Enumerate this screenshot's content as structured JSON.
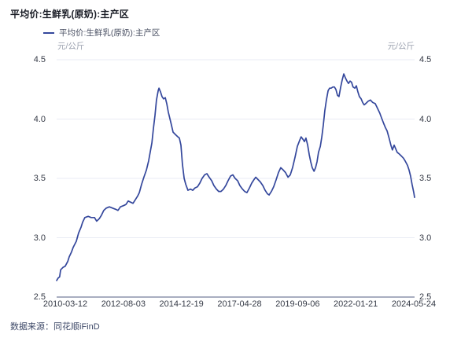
{
  "title": "平均价:生鲜乳(原奶):主产区",
  "legend": {
    "label": "平均价:生鲜乳(原奶):主产区"
  },
  "axes": {
    "unit": "元/公斤",
    "ytick_labels": [
      "4.5",
      "4.0",
      "3.5",
      "3.0",
      "2.5"
    ],
    "xtick_labels": [
      "2010-03-12",
      "2012-08-03",
      "2014-12-19",
      "2017-04-28",
      "2019-09-06",
      "2022-01-21",
      "2024-05-24"
    ]
  },
  "footer": {
    "source": "数据来源：同花顺iFinD"
  },
  "colors": {
    "line": "#34479c",
    "grid": "#e9ebf4",
    "axis_line": "#a9aec0",
    "tick_text": "#363b47",
    "unit_text": "#9aa0ae",
    "title_text": "#1a1d26",
    "legend_text": "#4a5063",
    "footer_text": "#3e4968"
  },
  "chart_data": {
    "type": "line",
    "title": "平均价:生鲜乳(原奶):主产区",
    "xlabel": "",
    "ylabel": "元/公斤",
    "ylim": [
      2.5,
      4.5
    ],
    "yticks": [
      4.5,
      4.0,
      3.5,
      3.0,
      2.5
    ],
    "xtick_labels": [
      "2010-03-12",
      "2012-08-03",
      "2014-12-19",
      "2017-04-28",
      "2019-09-06",
      "2022-01-21",
      "2024-05-24"
    ],
    "x_unit": "decimal_year",
    "xlim": [
      2010.2,
      2024.4
    ],
    "grid": "horizontal",
    "legend_position": "top-left",
    "series": [
      {
        "name": "平均价:生鲜乳(原奶):主产区",
        "x": [
          2010.2,
          2010.26,
          2010.32,
          2010.36,
          2010.45,
          2010.54,
          2010.64,
          2010.7,
          2010.79,
          2010.86,
          2010.98,
          2011.07,
          2011.17,
          2011.23,
          2011.32,
          2011.45,
          2011.57,
          2011.7,
          2011.79,
          2011.89,
          2011.98,
          2012.07,
          2012.17,
          2012.29,
          2012.42,
          2012.54,
          2012.63,
          2012.73,
          2012.85,
          2012.95,
          2013.04,
          2013.13,
          2013.23,
          2013.32,
          2013.41,
          2013.48,
          2013.57,
          2013.66,
          2013.76,
          2013.85,
          2013.91,
          2013.98,
          2014.04,
          2014.1,
          2014.16,
          2014.23,
          2014.26,
          2014.32,
          2014.38,
          2014.44,
          2014.51,
          2014.57,
          2014.63,
          2014.73,
          2014.82,
          2014.91,
          2015.01,
          2015.07,
          2015.13,
          2015.19,
          2015.26,
          2015.32,
          2015.41,
          2015.51,
          2015.6,
          2015.69,
          2015.79,
          2015.88,
          2015.97,
          2016.07,
          2016.16,
          2016.25,
          2016.35,
          2016.44,
          2016.54,
          2016.63,
          2016.72,
          2016.82,
          2016.91,
          2017.0,
          2017.1,
          2017.19,
          2017.28,
          2017.38,
          2017.47,
          2017.57,
          2017.66,
          2017.75,
          2017.85,
          2017.94,
          2018.03,
          2018.1,
          2018.19,
          2018.28,
          2018.38,
          2018.47,
          2018.56,
          2018.63,
          2018.72,
          2018.81,
          2018.91,
          2019.0,
          2019.09,
          2019.19,
          2019.28,
          2019.38,
          2019.47,
          2019.56,
          2019.66,
          2019.75,
          2019.84,
          2019.9,
          2019.97,
          2020.03,
          2020.09,
          2020.16,
          2020.22,
          2020.28,
          2020.34,
          2020.41,
          2020.47,
          2020.53,
          2020.59,
          2020.66,
          2020.72,
          2020.78,
          2020.84,
          2020.9,
          2020.97,
          2021.03,
          2021.09,
          2021.16,
          2021.22,
          2021.28,
          2021.34,
          2021.4,
          2021.47,
          2021.53,
          2021.59,
          2021.65,
          2021.72,
          2021.78,
          2021.84,
          2021.9,
          2021.96,
          2022.03,
          2022.09,
          2022.15,
          2022.21,
          2022.28,
          2022.34,
          2022.4,
          2022.46,
          2022.56,
          2022.65,
          2022.74,
          2022.84,
          2022.93,
          2023.02,
          2023.09,
          2023.18,
          2023.24,
          2023.31,
          2023.4,
          2023.46,
          2023.52,
          2023.59,
          2023.65,
          2023.71,
          2023.77,
          2023.87,
          2023.96,
          2024.02,
          2024.12,
          2024.18,
          2024.24,
          2024.3,
          2024.37,
          2024.4
        ],
        "values": [
          2.64,
          2.66,
          2.67,
          2.73,
          2.75,
          2.76,
          2.8,
          2.84,
          2.88,
          2.92,
          2.97,
          3.04,
          3.09,
          3.13,
          3.17,
          3.18,
          3.17,
          3.17,
          3.14,
          3.16,
          3.19,
          3.23,
          3.25,
          3.26,
          3.25,
          3.24,
          3.23,
          3.26,
          3.27,
          3.28,
          3.31,
          3.3,
          3.29,
          3.32,
          3.35,
          3.38,
          3.45,
          3.51,
          3.57,
          3.65,
          3.72,
          3.8,
          3.92,
          4.03,
          4.16,
          4.24,
          4.26,
          4.23,
          4.19,
          4.17,
          4.18,
          4.13,
          4.06,
          3.97,
          3.89,
          3.87,
          3.85,
          3.84,
          3.78,
          3.62,
          3.5,
          3.45,
          3.4,
          3.41,
          3.4,
          3.42,
          3.43,
          3.46,
          3.5,
          3.53,
          3.54,
          3.51,
          3.48,
          3.44,
          3.41,
          3.39,
          3.39,
          3.41,
          3.44,
          3.48,
          3.52,
          3.53,
          3.5,
          3.48,
          3.44,
          3.41,
          3.39,
          3.38,
          3.42,
          3.46,
          3.49,
          3.51,
          3.49,
          3.47,
          3.44,
          3.4,
          3.37,
          3.36,
          3.39,
          3.43,
          3.49,
          3.55,
          3.59,
          3.57,
          3.55,
          3.51,
          3.53,
          3.59,
          3.68,
          3.77,
          3.82,
          3.85,
          3.83,
          3.81,
          3.84,
          3.78,
          3.7,
          3.64,
          3.59,
          3.56,
          3.59,
          3.64,
          3.72,
          3.77,
          3.85,
          3.95,
          4.07,
          4.16,
          4.24,
          4.26,
          4.26,
          4.27,
          4.27,
          4.25,
          4.2,
          4.19,
          4.27,
          4.33,
          4.38,
          4.35,
          4.32,
          4.3,
          4.32,
          4.31,
          4.27,
          4.26,
          4.28,
          4.23,
          4.19,
          4.17,
          4.14,
          4.12,
          4.13,
          4.15,
          4.16,
          4.14,
          4.13,
          4.09,
          4.05,
          4.01,
          3.96,
          3.93,
          3.9,
          3.83,
          3.78,
          3.74,
          3.78,
          3.75,
          3.72,
          3.71,
          3.69,
          3.67,
          3.65,
          3.61,
          3.57,
          3.52,
          3.45,
          3.38,
          3.34
        ]
      }
    ]
  }
}
